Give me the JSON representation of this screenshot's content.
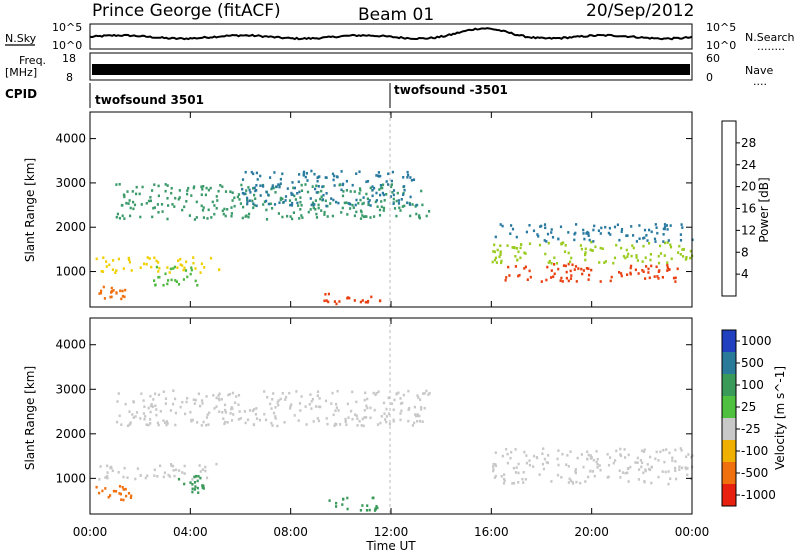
{
  "header": {
    "title": "Prince George (fitACF)",
    "beam": "Beam 01",
    "date": "20/Sep/2012"
  },
  "summary_panels": {
    "nsky_label": "N.Sky",
    "nsky_ticks": [
      "10^5",
      "10^0"
    ],
    "nsearch_label": "N.Search",
    "nsearch_ticks": [
      "10^5",
      "10^0"
    ],
    "nsearch_legend": "........",
    "freq_label": "Freq.",
    "freq_unit": "[MHz]",
    "freq_ticks": [
      "18",
      "8"
    ],
    "nave_label": "Nave",
    "nave_ticks": [
      "60",
      "0"
    ],
    "nave_legend": "....",
    "cpid_label": "CPID",
    "cpid_entries": [
      {
        "text": "twofsound 3501",
        "start_hour": 0
      },
      {
        "text": "twofsound -3501",
        "start_hour": 12
      }
    ]
  },
  "chart_data": [
    {
      "type": "heatmap",
      "name": "power",
      "ylabel": "Slant Range [km]",
      "xlabel": "Time UT",
      "xlim": [
        0,
        24
      ],
      "ylim": [
        200,
        4600
      ],
      "x_ticks": [
        "00:00",
        "04:00",
        "08:00",
        "12:00",
        "16:00",
        "20:00",
        "00:00"
      ],
      "y_ticks": [
        1000,
        2000,
        3000,
        4000
      ],
      "colorbar": {
        "label": "Power [dB]",
        "ticks": [
          "4",
          "8",
          "12",
          "16",
          "20",
          "24",
          "28"
        ],
        "range": [
          0,
          32
        ],
        "colors": [
          "#1010e0",
          "#2255c8",
          "#2a7aa0",
          "#3a9a6a",
          "#4fb840",
          "#9acc20",
          "#f0d000",
          "#f5a000",
          "#f07010",
          "#e84010",
          "#e01010"
        ]
      },
      "regions": [
        {
          "t0": 0.2,
          "t1": 5.2,
          "r0": 1000,
          "r1": 1350,
          "power": 20
        },
        {
          "t0": 0.3,
          "t1": 1.4,
          "r0": 400,
          "r1": 700,
          "power": 24
        },
        {
          "t0": 2.5,
          "t1": 4.3,
          "r0": 700,
          "r1": 1200,
          "power": 14
        },
        {
          "t0": 1.0,
          "t1": 13.5,
          "r0": 2200,
          "r1": 3000,
          "power": 10
        },
        {
          "t0": 6.0,
          "t1": 13.0,
          "r0": 2500,
          "r1": 3300,
          "power": 8
        },
        {
          "t0": 9.3,
          "t1": 11.8,
          "r0": 300,
          "r1": 550,
          "power": 29
        },
        {
          "t0": 16.5,
          "t1": 24.0,
          "r0": 800,
          "r1": 1200,
          "power": 28
        },
        {
          "t0": 16.0,
          "t1": 24.0,
          "r0": 1200,
          "r1": 1700,
          "power": 16
        },
        {
          "t0": 16.0,
          "t1": 24.0,
          "r0": 1700,
          "r1": 2100,
          "power": 6
        }
      ]
    },
    {
      "type": "heatmap",
      "name": "velocity",
      "ylabel": "Slant Range [km]",
      "xlabel": "Time UT",
      "xlim": [
        0,
        24
      ],
      "ylim": [
        200,
        4600
      ],
      "x_ticks": [
        "00:00",
        "04:00",
        "08:00",
        "12:00",
        "16:00",
        "20:00",
        "00:00"
      ],
      "y_ticks": [
        1000,
        2000,
        3000,
        4000
      ],
      "colorbar": {
        "label": "Velocity [m s^-1]",
        "ticks": [
          "1000",
          "500",
          "100",
          "25",
          "-25",
          "-100",
          "-500",
          "-1000"
        ],
        "colors": [
          "#2040c0",
          "#2a7a9a",
          "#3a9a5a",
          "#50c040",
          "#c8c8c8",
          "#f0b000",
          "#f07010",
          "#e82010"
        ]
      },
      "regions": [
        {
          "t0": 0.2,
          "t1": 5.2,
          "r0": 1000,
          "r1": 1350,
          "velocity": 0
        },
        {
          "t0": 0.2,
          "t1": 1.6,
          "r0": 450,
          "r1": 850,
          "velocity": -500
        },
        {
          "t0": 3.5,
          "t1": 4.5,
          "r0": 700,
          "r1": 1100,
          "velocity": 100
        },
        {
          "t0": 1.0,
          "t1": 13.5,
          "r0": 2200,
          "r1": 3000,
          "velocity": 0
        },
        {
          "t0": 9.5,
          "t1": 11.5,
          "r0": 300,
          "r1": 600,
          "velocity": 100
        },
        {
          "t0": 16.0,
          "t1": 24.0,
          "r0": 900,
          "r1": 1700,
          "velocity": 0
        }
      ]
    }
  ]
}
